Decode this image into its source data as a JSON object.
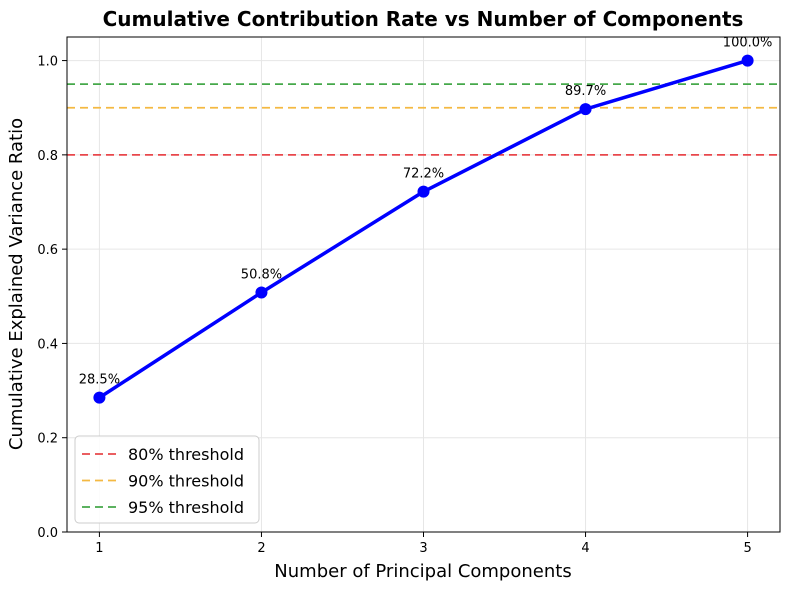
{
  "chart_data": {
    "type": "line",
    "title": "Cumulative Contribution Rate vs Number of Components",
    "xlabel": "Number of Principal Components",
    "ylabel": "Cumulative Explained Variance Ratio",
    "x": [
      1,
      2,
      3,
      4,
      5
    ],
    "xticks": [
      "1",
      "2",
      "3",
      "4",
      "5"
    ],
    "xlim": [
      0.8,
      5.2
    ],
    "ylim": [
      0.0,
      1.05
    ],
    "yticks": [
      "0.0",
      "0.2",
      "0.4",
      "0.6",
      "0.8",
      "1.0"
    ],
    "grid": true,
    "series": [
      {
        "values": [
          0.285,
          0.508,
          0.722,
          0.897,
          1.0
        ],
        "labels": [
          "28.5%",
          "50.8%",
          "72.2%",
          "89.7%",
          "100.0%"
        ],
        "color": "#0000ff",
        "marker": "circle"
      }
    ],
    "thresholds": [
      {
        "name": "80% threshold",
        "value": 0.8,
        "color": "#e8474b"
      },
      {
        "name": "90% threshold",
        "value": 0.9,
        "color": "#f4b942"
      },
      {
        "name": "95% threshold",
        "value": 0.95,
        "color": "#45a84a"
      }
    ],
    "legend_position": "lower-left"
  }
}
